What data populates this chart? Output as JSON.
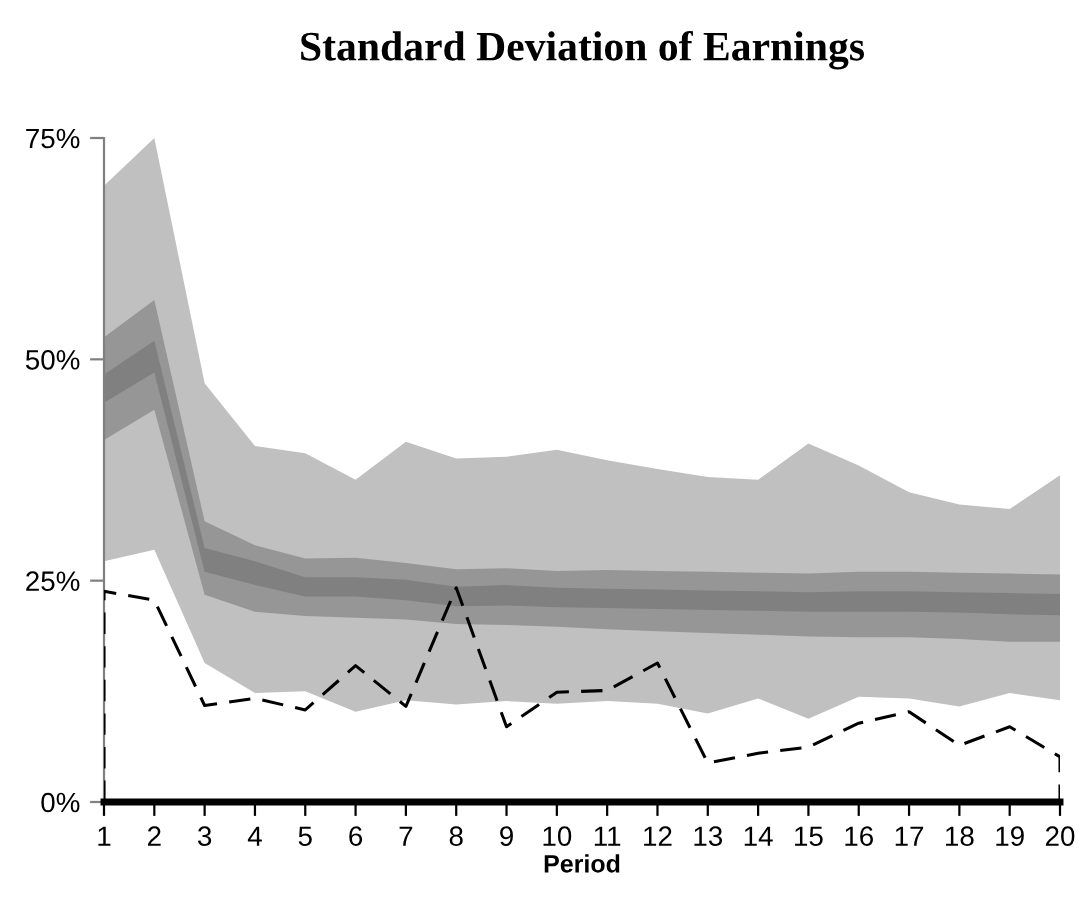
{
  "chart_data": {
    "type": "line",
    "title": "Standard Deviation of Earnings",
    "xlabel": "Period",
    "xlim": [
      1,
      20
    ],
    "xticks": [
      1,
      2,
      3,
      4,
      5,
      6,
      7,
      8,
      9,
      10,
      11,
      12,
      13,
      14,
      15,
      16,
      17,
      18,
      19,
      20
    ],
    "ylim": [
      0,
      75
    ],
    "yticks": [
      {
        "value": 0,
        "label": "0%"
      },
      {
        "value": 25,
        "label": "25%"
      },
      {
        "value": 50,
        "label": "50%"
      },
      {
        "value": 75,
        "label": "75%"
      }
    ],
    "x": [
      1,
      2,
      3,
      4,
      5,
      6,
      7,
      8,
      9,
      10,
      11,
      12,
      13,
      14,
      15,
      16,
      17,
      18,
      19,
      20
    ],
    "series": [
      {
        "type": "area",
        "color": "#c0c0c0",
        "values": [
          null,
          null,
          null,
          null,
          null,
          null,
          null,
          null,
          null,
          null,
          null,
          null,
          null,
          null,
          null,
          null,
          null,
          null,
          null,
          null
        ],
        "lower": [
          27.2,
          28.5,
          15.7,
          12.3,
          12.5,
          10.2,
          11.5,
          11.0,
          11.4,
          11.1,
          11.4,
          11.1,
          10.0,
          11.7,
          9.4,
          11.9,
          11.7,
          10.8,
          12.3,
          11.5
        ],
        "upper": [
          69.6,
          75,
          47.3,
          40.2,
          39.4,
          36.4,
          40.7,
          38.8,
          39.0,
          39.8,
          38.6,
          37.6,
          36.7,
          36.4,
          40.5,
          38.0,
          35.0,
          33.6,
          33.1,
          36.9
        ]
      },
      {
        "type": "area",
        "color": "#969696",
        "values": [
          null,
          null,
          null,
          null,
          null,
          null,
          null,
          null,
          null,
          null,
          null,
          null,
          null,
          null,
          null,
          null,
          null,
          null,
          null,
          null
        ],
        "lower": [
          40.9,
          44.3,
          23.4,
          21.5,
          21.0,
          20.8,
          20.6,
          20.1,
          20.0,
          19.8,
          19.5,
          19.3,
          19.1,
          18.9,
          18.7,
          18.6,
          18.6,
          18.4,
          18.1,
          18.1
        ],
        "upper": [
          52.5,
          56.7,
          31.7,
          29.0,
          27.5,
          27.6,
          27.0,
          26.3,
          26.4,
          26.1,
          26.2,
          26.1,
          26.0,
          25.9,
          25.8,
          26.0,
          26.0,
          25.9,
          25.8,
          25.7
        ]
      },
      {
        "type": "area",
        "color": "#808080",
        "values": [
          null,
          null,
          null,
          null,
          null,
          null,
          null,
          null,
          null,
          null,
          null,
          null,
          null,
          null,
          null,
          null,
          null,
          null,
          null,
          null
        ],
        "lower": [
          45.1,
          48.5,
          26.0,
          24.5,
          23.2,
          23.2,
          22.8,
          22.1,
          22.2,
          22.0,
          21.9,
          21.8,
          21.7,
          21.6,
          21.5,
          21.5,
          21.5,
          21.4,
          21.2,
          21.1
        ],
        "upper": [
          48.3,
          52.1,
          28.7,
          27.2,
          25.4,
          25.4,
          25.1,
          24.3,
          24.5,
          24.2,
          24.1,
          24.0,
          23.9,
          23.8,
          23.7,
          23.8,
          23.8,
          23.7,
          23.6,
          23.5
        ]
      },
      {
        "color": "#000000",
        "line_style": "dashed",
        "marker": "none",
        "x": [
          1,
          1,
          2,
          3,
          4,
          5,
          6,
          7,
          8,
          9,
          10,
          11,
          12,
          13,
          14,
          15,
          16,
          17,
          18,
          19,
          20,
          20
        ],
        "values": [
          0,
          23.8,
          22.8,
          10.9,
          11.7,
          10.4,
          15.4,
          10.8,
          24.2,
          8.5,
          12.4,
          12.6,
          15.7,
          4.4,
          5.5,
          6.2,
          8.9,
          10.2,
          6.4,
          8.5,
          5.1,
          0
        ]
      }
    ]
  }
}
